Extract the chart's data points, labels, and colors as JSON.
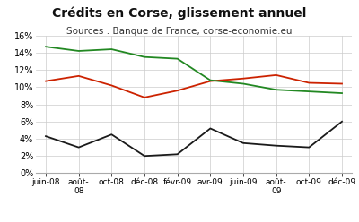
{
  "title": "Crédits en Corse, glissement annuel",
  "subtitle": "Sources : Banque de France, corse-economie.eu",
  "x_labels": [
    "juin-08",
    "août-\n08",
    "oct-08",
    "déc-08",
    "févr-09",
    "avr-09",
    "juin-09",
    "août-\n09",
    "oct-09",
    "déc-09"
  ],
  "tresorerie": [
    4.3,
    3.0,
    4.5,
    2.0,
    2.2,
    5.2,
    3.5,
    3.2,
    3.0,
    6.0
  ],
  "investissement": [
    10.7,
    11.3,
    10.2,
    8.8,
    9.6,
    10.7,
    11.0,
    11.4,
    10.5,
    10.4
  ],
  "logement": [
    14.7,
    14.2,
    14.4,
    13.5,
    13.3,
    10.8,
    10.4,
    9.7,
    9.5,
    9.3
  ],
  "color_tresorerie": "#1a1a1a",
  "color_investissement": "#cc2200",
  "color_logement": "#228822",
  "ylim": [
    0,
    16
  ],
  "yticks": [
    0,
    2,
    4,
    6,
    8,
    10,
    12,
    14,
    16
  ],
  "background_color": "#ffffff",
  "grid_color": "#cccccc"
}
